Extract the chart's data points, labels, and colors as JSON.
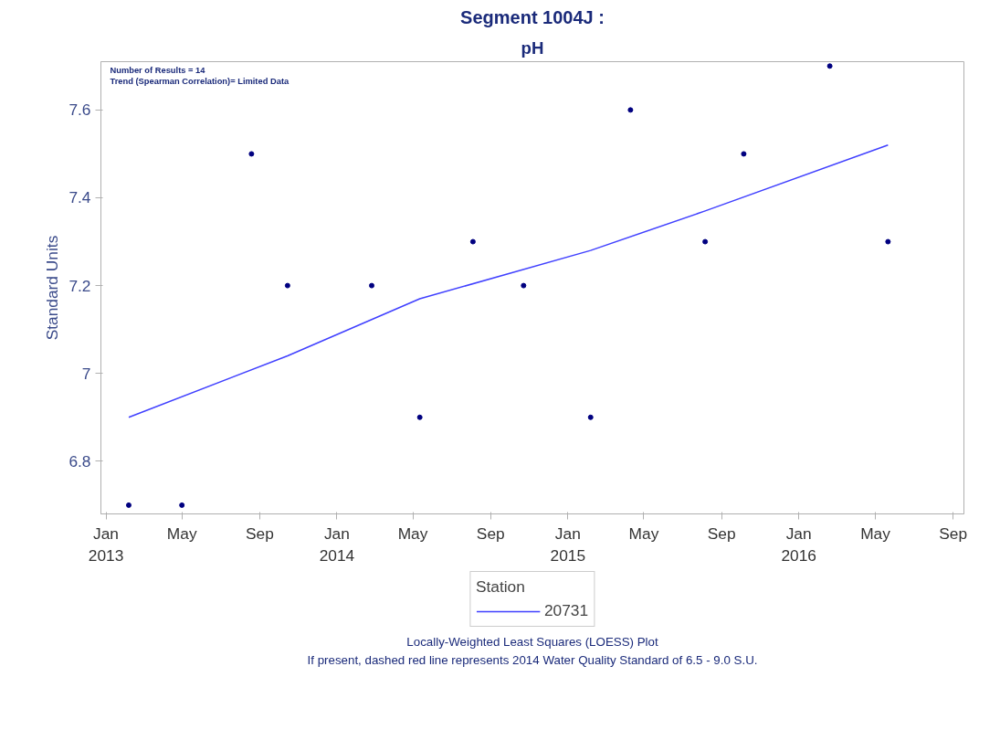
{
  "chart_data": {
    "type": "scatter",
    "title": "Segment 1004J :",
    "subtitle": "pH",
    "ylabel": "Standard Units",
    "legend_title": "Station",
    "x": [
      "2013-02-06",
      "2013-05-01",
      "2013-08-19",
      "2013-10-15",
      "2014-02-25",
      "2014-05-12",
      "2014-08-04",
      "2014-10-23",
      "2015-02-06",
      "2015-04-10",
      "2015-08-06",
      "2015-10-06",
      "2016-02-19",
      "2016-05-21"
    ],
    "series": [
      {
        "type": "scatter",
        "color": "#000080",
        "marker": "circle",
        "values": [
          6.7,
          6.7,
          7.5,
          7.2,
          7.2,
          6.9,
          7.3,
          7.2,
          6.9,
          7.6,
          7.3,
          7.5,
          7.7,
          7.3
        ]
      },
      {
        "type": "line",
        "name": "20731",
        "color": "#4040ff",
        "line_style": "solid",
        "x": [
          "2013-02-06",
          "2013-10-15",
          "2014-05-12",
          "2015-02-06",
          "2015-08-06",
          "2016-05-21"
        ],
        "values": [
          6.9,
          7.04,
          7.17,
          7.28,
          7.37,
          7.52
        ]
      }
    ],
    "xlim": [
      "2012-12-24",
      "2016-09-18"
    ],
    "xticks": [
      {
        "value": "2013-01-01",
        "label": "Jan\n2013"
      },
      {
        "value": "2013-05-01",
        "label": "May"
      },
      {
        "value": "2013-09-01",
        "label": "Sep"
      },
      {
        "value": "2014-01-01",
        "label": "Jan\n2014"
      },
      {
        "value": "2014-05-01",
        "label": "May"
      },
      {
        "value": "2014-09-01",
        "label": "Sep"
      },
      {
        "value": "2015-01-01",
        "label": "Jan\n2015"
      },
      {
        "value": "2015-05-01",
        "label": "May"
      },
      {
        "value": "2015-09-01",
        "label": "Sep"
      },
      {
        "value": "2016-01-01",
        "label": "Jan\n2016"
      },
      {
        "value": "2016-05-01",
        "label": "May"
      },
      {
        "value": "2016-09-01",
        "label": "Sep"
      }
    ],
    "ylim": [
      6.68,
      7.71
    ],
    "yticks": [
      {
        "value": 6.8,
        "label": "6.8"
      },
      {
        "value": 7.0,
        "label": "7"
      },
      {
        "value": 7.2,
        "label": "7.2"
      },
      {
        "value": 7.4,
        "label": "7.4"
      },
      {
        "value": 7.6,
        "label": "7.6"
      }
    ],
    "grid": false,
    "legend": "bottom",
    "annotations": [
      "Number of Results = 14",
      "Trend (Spearman Correlation)= Limited Data",
      "Locally-Weighted Least Squares (LOESS) Plot",
      "If present, dashed red line represents 2014 Water Quality Standard of 6.5 - 9.0 S.U."
    ]
  }
}
